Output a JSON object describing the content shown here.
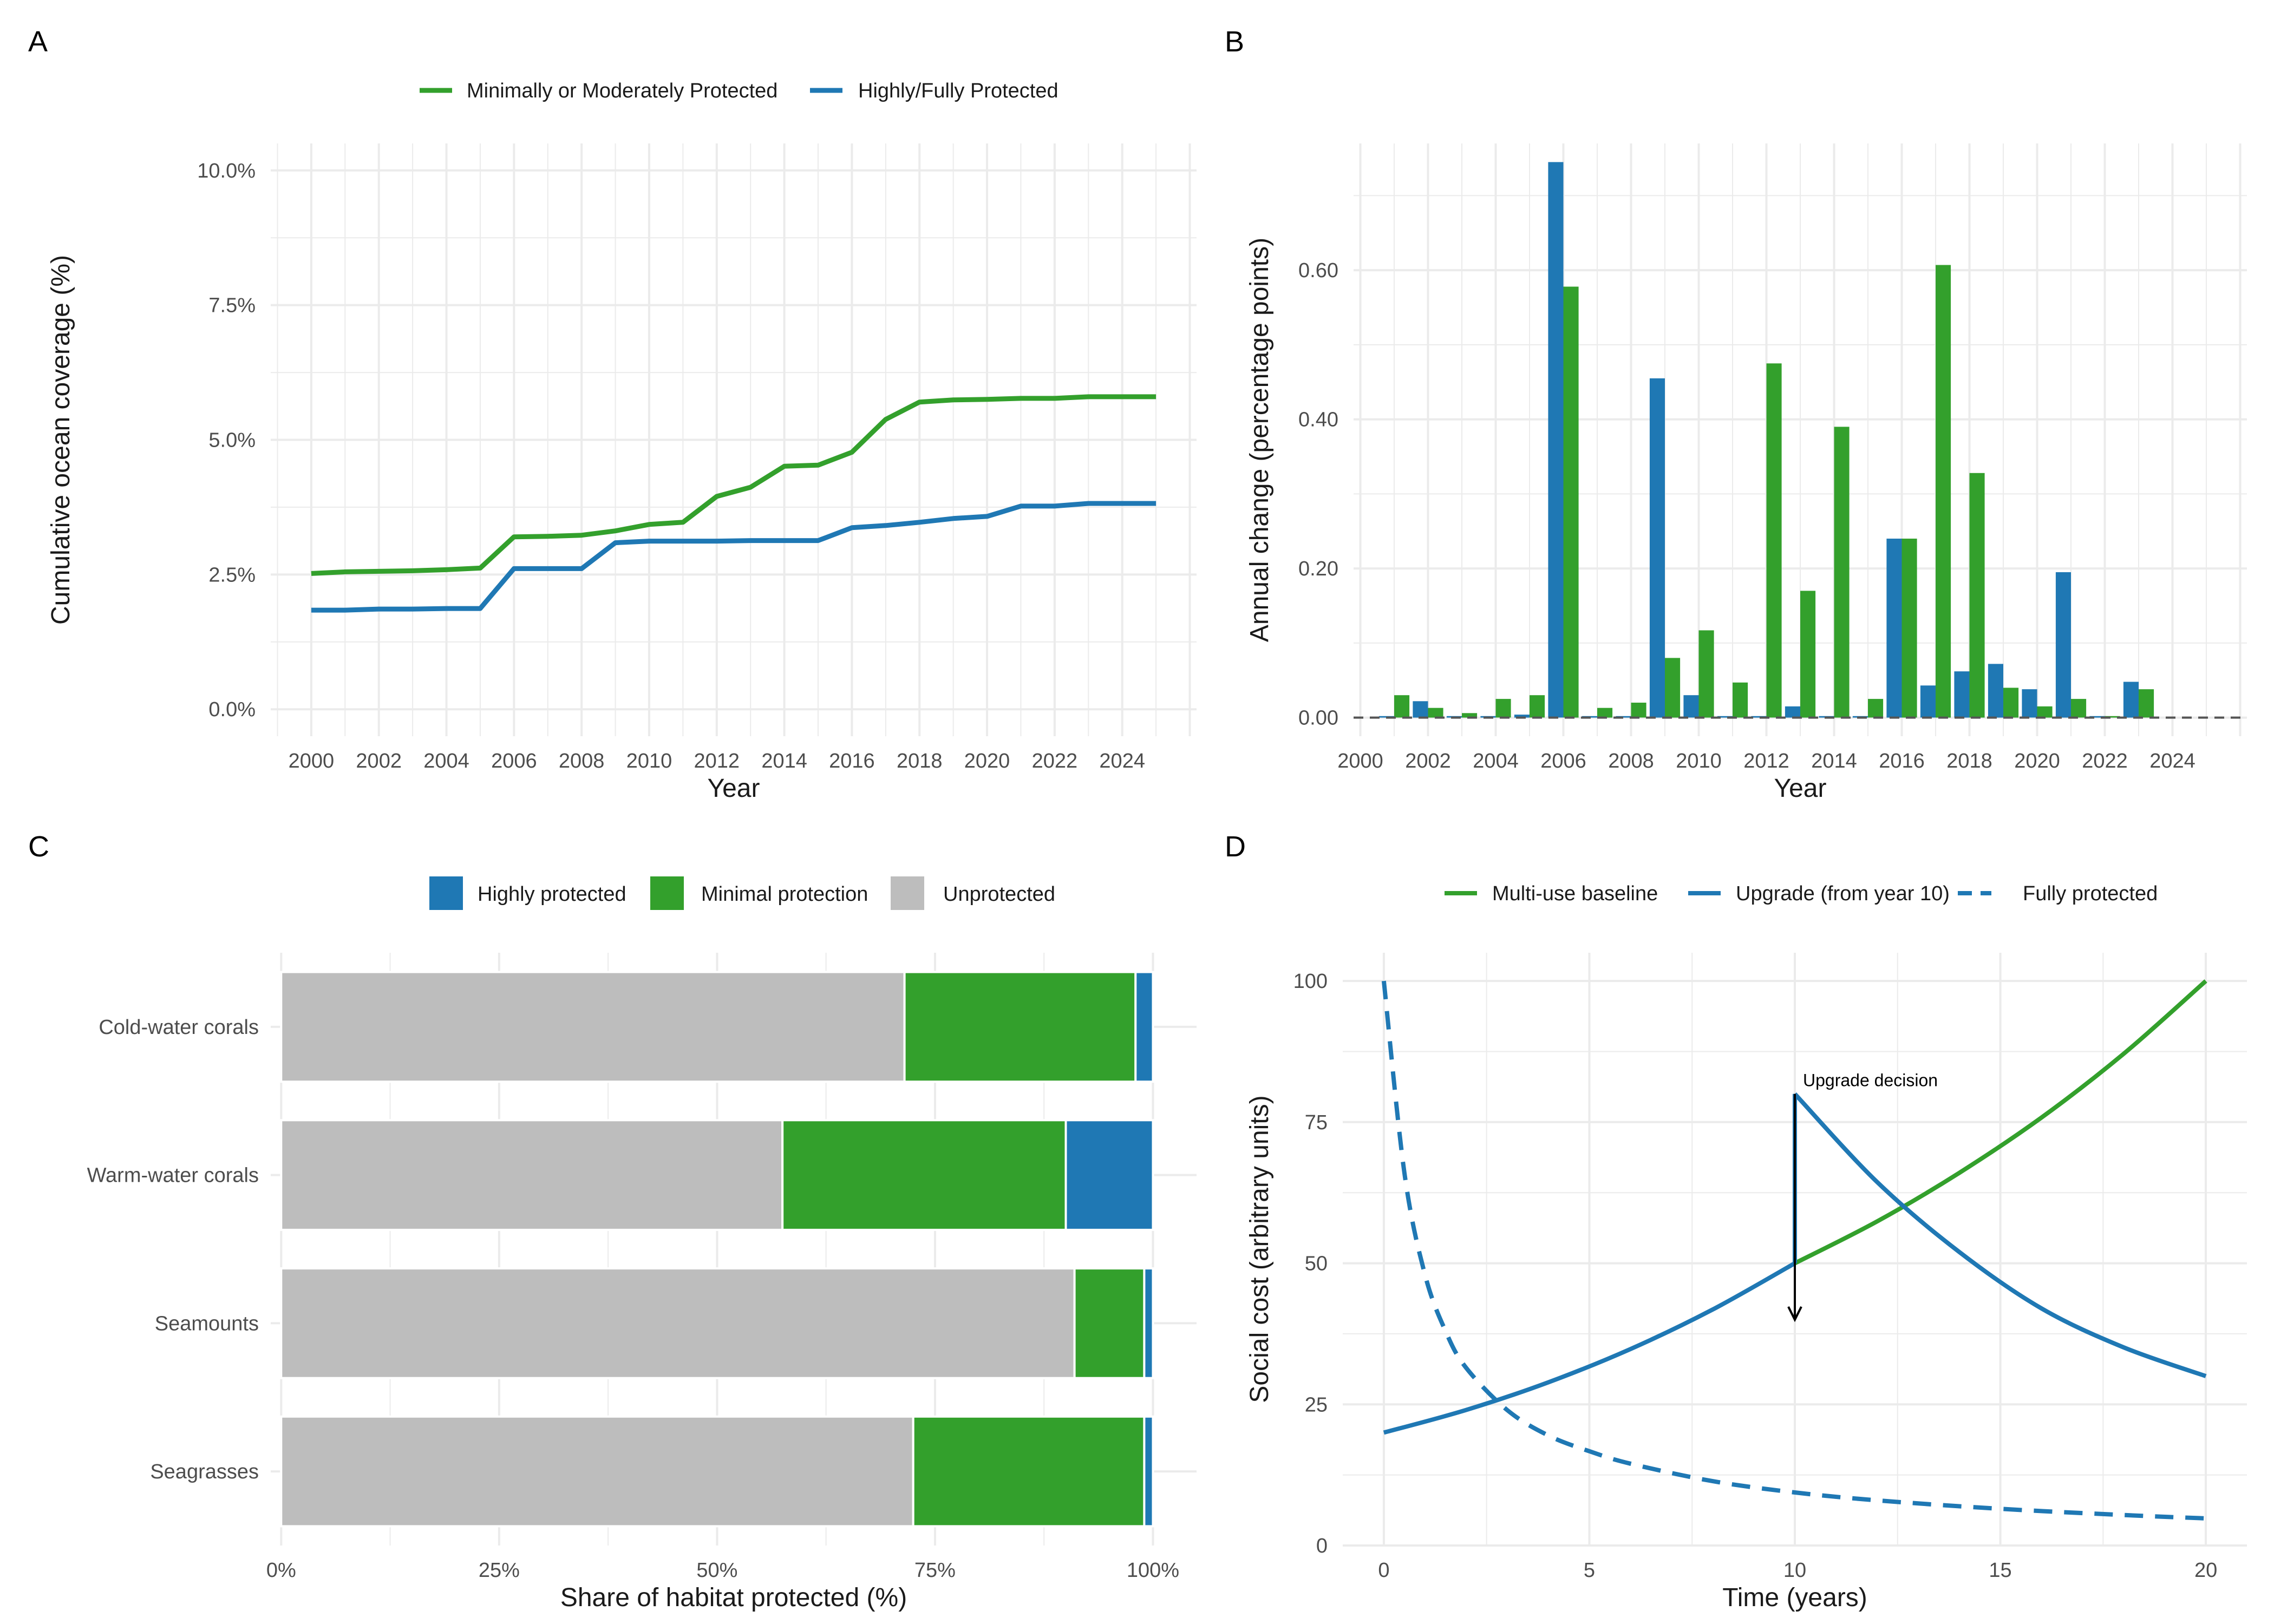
{
  "colors": {
    "green": "#33a02c",
    "blue": "#1f78b4",
    "grey": "#bdbdbd",
    "grid": "#ebebeb",
    "zero_line": "#555555"
  },
  "panels": [
    {
      "label": "A",
      "chart_data": {
        "type": "line",
        "xlabel": "Year",
        "ylabel": "Cumulative ocean coverage (%)",
        "x": [
          2000,
          2001,
          2002,
          2003,
          2004,
          2005,
          2006,
          2007,
          2008,
          2009,
          2010,
          2011,
          2012,
          2013,
          2014,
          2015,
          2016,
          2017,
          2018,
          2019,
          2020,
          2021,
          2022,
          2023,
          2024,
          2025
        ],
        "series": [
          {
            "name": "Minimally or Moderately Protected",
            "color_key": "green",
            "values": [
              2.52,
              2.55,
              2.56,
              2.57,
              2.59,
              2.62,
              3.2,
              3.21,
              3.23,
              3.31,
              3.43,
              3.47,
              3.95,
              4.12,
              4.51,
              4.53,
              4.77,
              5.38,
              5.7,
              5.74,
              5.75,
              5.77,
              5.77,
              5.8,
              5.8,
              5.8
            ]
          },
          {
            "name": "Highly/Fully Protected",
            "color_key": "blue",
            "values": [
              1.84,
              1.84,
              1.86,
              1.86,
              1.87,
              1.87,
              2.61,
              2.61,
              2.61,
              3.09,
              3.12,
              3.12,
              3.12,
              3.13,
              3.13,
              3.13,
              3.37,
              3.41,
              3.47,
              3.54,
              3.58,
              3.77,
              3.77,
              3.82,
              3.82,
              3.82
            ]
          }
        ],
        "xlim": [
          1998.8,
          2026.2
        ],
        "xticks": [
          2000,
          2002,
          2004,
          2006,
          2008,
          2010,
          2012,
          2014,
          2016,
          2018,
          2020,
          2022,
          2024
        ],
        "xtick_labels": [
          "2000",
          "2002",
          "2004",
          "2006",
          "2008",
          "2010",
          "2012",
          "2014",
          "2016",
          "2018",
          "2020",
          "2022",
          "2024"
        ],
        "ylim": [
          -0.5,
          10.5
        ],
        "yticks": [
          0,
          2.5,
          5,
          7.5,
          10
        ],
        "ytick_labels": [
          "0.0%",
          "2.5%",
          "5.0%",
          "7.5%",
          "10.0%"
        ],
        "legend_position": "top",
        "grid": true
      }
    },
    {
      "label": "B",
      "chart_data": {
        "type": "bar",
        "xlabel": "Year",
        "ylabel": "Annual change (percentage points)",
        "x": [
          2001,
          2002,
          2003,
          2004,
          2005,
          2006,
          2007,
          2008,
          2009,
          2010,
          2011,
          2012,
          2013,
          2014,
          2015,
          2016,
          2017,
          2018,
          2019,
          2020,
          2021,
          2022,
          2023
        ],
        "series": [
          {
            "color_key": "blue",
            "values": [
              0.002,
              0.022,
              0.002,
              0.002,
              0.004,
              0.745,
              0.002,
              0.002,
              0.455,
              0.03,
              0.002,
              0.002,
              0.015,
              0.002,
              0.002,
              0.24,
              0.043,
              0.062,
              0.072,
              0.038,
              0.195,
              0.002,
              0.048
            ]
          },
          {
            "color_key": "green",
            "values": [
              0.03,
              0.013,
              0.006,
              0.025,
              0.03,
              0.578,
              0.013,
              0.02,
              0.08,
              0.117,
              0.047,
              0.475,
              0.17,
              0.39,
              0.025,
              0.24,
              0.607,
              0.328,
              0.04,
              0.015,
              0.025,
              0.002,
              0.038
            ]
          }
        ],
        "xlim": [
          1999.8,
          2026.2
        ],
        "xticks": [
          2000,
          2002,
          2004,
          2006,
          2008,
          2010,
          2012,
          2014,
          2016,
          2018,
          2020,
          2022,
          2024
        ],
        "xtick_labels": [
          "2000",
          "2002",
          "2004",
          "2006",
          "2008",
          "2010",
          "2012",
          "2014",
          "2016",
          "2018",
          "2020",
          "2022",
          "2024"
        ],
        "ylim": [
          -0.025,
          0.77
        ],
        "yticks": [
          0,
          0.2,
          0.4,
          0.6
        ],
        "ytick_labels": [
          "0.00",
          "0.20",
          "0.40",
          "0.60"
        ],
        "reference_line": {
          "y": 0,
          "style": "dashed"
        },
        "grid": true
      }
    },
    {
      "label": "C",
      "chart_data": {
        "type": "bar",
        "orientation": "horizontal",
        "stacked": true,
        "xlabel": "Share of habitat protected (%)",
        "ylabel": "",
        "categories": [
          "Cold-water corals",
          "Warm-water corals",
          "Seamounts",
          "Seagrasses"
        ],
        "series": [
          {
            "name": "Unprotected",
            "color_key": "grey",
            "values": [
              71.5,
              57.5,
              91,
              72.5
            ]
          },
          {
            "name": "Minimal protection",
            "color_key": "green",
            "values": [
              26.5,
              32.5,
              8,
              26.5
            ]
          },
          {
            "name": "Highly protected",
            "color_key": "blue",
            "values": [
              2.0,
              10.0,
              1.0,
              1.0
            ]
          }
        ],
        "legend_order": [
          "Highly protected",
          "Minimal protection",
          "Unprotected"
        ],
        "xlim": [
          -1.2,
          105
        ],
        "xticks": [
          0,
          25,
          50,
          75,
          100
        ],
        "xtick_labels": [
          "0%",
          "25%",
          "50%",
          "75%",
          "100%"
        ],
        "legend_position": "top",
        "grid": true
      }
    },
    {
      "label": "D",
      "chart_data": {
        "type": "line",
        "xlabel": "Time (years)",
        "ylabel": "Social cost (arbitrary units)",
        "series": [
          {
            "name": "Multi-use baseline",
            "color_key": "green",
            "style": "solid",
            "x": [
              10,
              12,
              14,
              16,
              18,
              20
            ],
            "y": [
              50,
              57.4,
              66,
              75.8,
              87.1,
              100
            ]
          },
          {
            "name": "Upgrade (from year 10)",
            "color_key": "blue",
            "style": "solid",
            "x": [
              0,
              2,
              4,
              6,
              8,
              10,
              10,
              12,
              14,
              16,
              18,
              20
            ],
            "y": [
              20,
              24.0,
              28.9,
              34.8,
              41.8,
              50,
              80,
              64.4,
              52.0,
              42.0,
              35.1,
              30
            ]
          },
          {
            "name": "Fully protected",
            "color_key": "blue",
            "style": "dashed",
            "x": [
              0,
              0.5,
              1,
              1.5,
              2,
              3,
              4,
              5,
              6,
              8,
              10,
              12,
              15,
              18,
              20
            ],
            "y": [
              100,
              66,
              48,
              38,
              31.5,
              24,
              19.5,
              16.7,
              14.5,
              11.4,
              9.4,
              8.0,
              6.5,
              5.4,
              4.8
            ]
          }
        ],
        "annotation": {
          "text": "Upgrade decision",
          "x": 10,
          "y": 80,
          "arrow_to_y": 40
        },
        "xlim": [
          -1,
          21
        ],
        "xticks": [
          0,
          5,
          10,
          15,
          20
        ],
        "xtick_labels": [
          "0",
          "5",
          "10",
          "15",
          "20"
        ],
        "ylim": [
          0,
          105
        ],
        "yticks": [
          0,
          25,
          50,
          75,
          100
        ],
        "ytick_labels": [
          "0",
          "25",
          "50",
          "75",
          "100"
        ],
        "legend_position": "top",
        "grid": true
      }
    }
  ]
}
